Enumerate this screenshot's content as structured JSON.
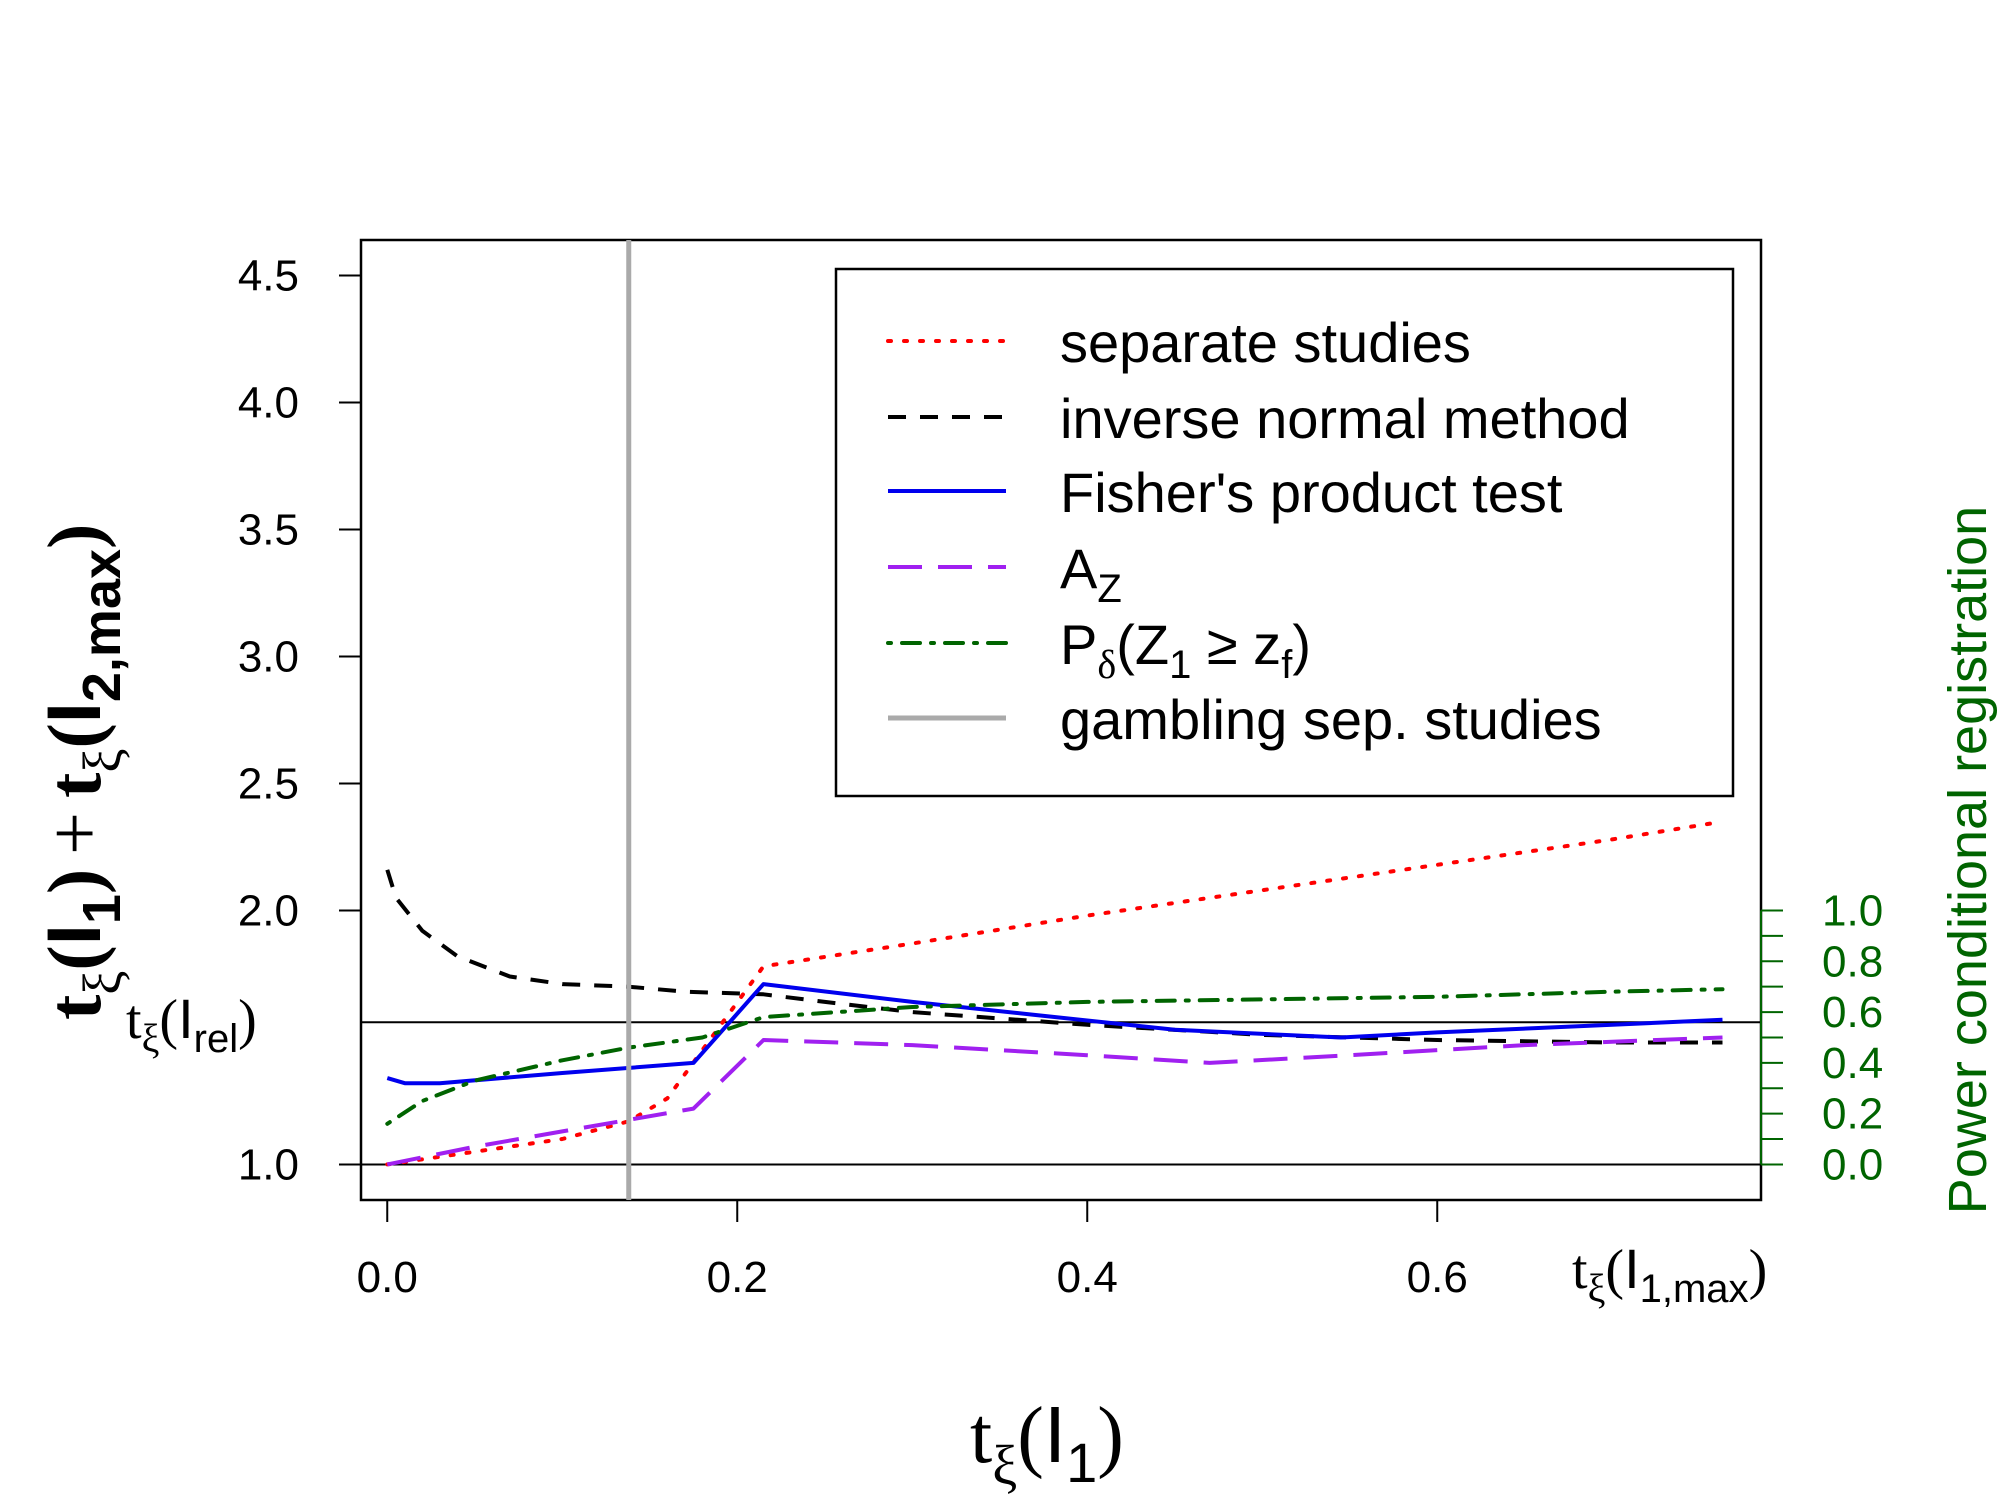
{
  "chart_data": {
    "type": "line",
    "title": "",
    "xlabel": {
      "base": "t",
      "sub": "ξ",
      "paren_open": "(",
      "var": "I",
      "var_sub": "1",
      "paren_close": ")"
    },
    "ylabel": {
      "t1": "t",
      "t1_sub": "ξ",
      "i1": "I",
      "i1_sub": "1",
      "plus": "+",
      "t2": "t",
      "t2_sub": "ξ",
      "i2": "I",
      "i2_sub": "2,max"
    },
    "y2label": "Power conditional registration",
    "xlim": [
      -0.015,
      0.785
    ],
    "ylim": [
      0.86,
      4.64
    ],
    "y2lim": [
      0,
      1
    ],
    "x_ticks": [
      {
        "value": 0.0,
        "label": "0.0"
      },
      {
        "value": 0.2,
        "label": "0.2"
      },
      {
        "value": 0.4,
        "label": "0.4"
      },
      {
        "value": 0.6,
        "label": "0.6"
      }
    ],
    "y_ticks": [
      {
        "value": 1.0,
        "label": "1.0"
      },
      {
        "value": 2.0,
        "label": "2.0"
      },
      {
        "value": 2.5,
        "label": "2.5"
      },
      {
        "value": 3.0,
        "label": "3.0"
      },
      {
        "value": 3.5,
        "label": "3.5"
      },
      {
        "value": 4.0,
        "label": "4.0"
      },
      {
        "value": 4.5,
        "label": "4.5"
      }
    ],
    "y2_ticks": [
      {
        "value": 0.0,
        "label": "0.0"
      },
      {
        "value": 0.2,
        "label": "0.2"
      },
      {
        "value": 0.4,
        "label": "0.4"
      },
      {
        "value": 0.6,
        "label": "0.6"
      },
      {
        "value": 0.8,
        "label": "0.8"
      },
      {
        "value": 1.0,
        "label": "1.0"
      }
    ],
    "y2_minor_step": 0.1,
    "hlines": [
      {
        "y": 1.0,
        "color": "#000000"
      },
      {
        "y": 1.56,
        "color": "#000000",
        "label": {
          "base": "t",
          "sub": "ξ",
          "var": "I",
          "var_sub": "rel"
        }
      }
    ],
    "vline": {
      "x": 0.138,
      "color": "#aaaaaa"
    },
    "x_end_label": {
      "base": "t",
      "sub": "ξ",
      "var": "I",
      "var_sub": "1,max"
    },
    "series": [
      {
        "name": "separate studies",
        "color": "#ff0000",
        "dash": "dotted",
        "axis": "left",
        "x": [
          0.0,
          0.05,
          0.1,
          0.138,
          0.16,
          0.18,
          0.215,
          0.3,
          0.4,
          0.5,
          0.6,
          0.7,
          0.763
        ],
        "y": [
          1.0,
          1.05,
          1.1,
          1.17,
          1.26,
          1.45,
          1.78,
          1.87,
          1.98,
          2.08,
          2.18,
          2.28,
          2.35
        ]
      },
      {
        "name": "inverse normal method",
        "color": "#000000",
        "dash": "dashed",
        "axis": "left",
        "x": [
          0.0,
          0.005,
          0.02,
          0.04,
          0.07,
          0.1,
          0.138,
          0.17,
          0.215,
          0.25,
          0.3,
          0.4,
          0.5,
          0.6,
          0.7,
          0.763
        ],
        "y": [
          2.16,
          2.05,
          1.92,
          1.82,
          1.74,
          1.71,
          1.7,
          1.68,
          1.67,
          1.64,
          1.6,
          1.55,
          1.51,
          1.49,
          1.48,
          1.48
        ]
      },
      {
        "name": "Fisher's product test",
        "color": "#0000ee",
        "dash": "solid",
        "axis": "left",
        "x": [
          0.0,
          0.01,
          0.03,
          0.1,
          0.175,
          0.215,
          0.3,
          0.45,
          0.545,
          0.6,
          0.7,
          0.763
        ],
        "y": [
          1.34,
          1.32,
          1.32,
          1.36,
          1.4,
          1.71,
          1.64,
          1.53,
          1.5,
          1.52,
          1.55,
          1.57
        ]
      },
      {
        "name": "A",
        "name_sub": "Z",
        "color": "#a020f0",
        "dash": "longdash",
        "axis": "left",
        "x": [
          0.0,
          0.05,
          0.1,
          0.175,
          0.215,
          0.3,
          0.4,
          0.47,
          0.55,
          0.65,
          0.763
        ],
        "y": [
          1.0,
          1.07,
          1.13,
          1.22,
          1.49,
          1.47,
          1.43,
          1.4,
          1.43,
          1.47,
          1.5
        ]
      },
      {
        "name": "P",
        "name_sub": "δ",
        "name_rest": "(Z",
        "name_rest_sub": "1",
        "name_mid": " ≥ z",
        "name_mid_sub": "f",
        "name_end": ")",
        "color": "#006400",
        "dash": "dotdash",
        "axis": "right",
        "x": [
          0.0,
          0.02,
          0.05,
          0.1,
          0.138,
          0.18,
          0.215,
          0.3,
          0.4,
          0.5,
          0.6,
          0.7,
          0.763
        ],
        "y": [
          0.16,
          0.25,
          0.33,
          0.41,
          0.46,
          0.5,
          0.58,
          0.62,
          0.64,
          0.65,
          0.66,
          0.68,
          0.69
        ]
      }
    ],
    "legend": {
      "position": "top-right",
      "extra_entry": {
        "name": "gambling sep. studies",
        "color": "#aaaaaa",
        "dash": "solid"
      }
    }
  }
}
